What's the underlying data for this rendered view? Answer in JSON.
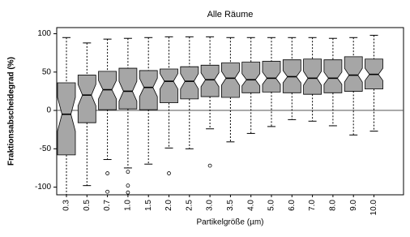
{
  "chart_data": {
    "type": "boxplot",
    "title": "Alle Räume",
    "x_label": "Partikelgröße (µm)",
    "y_label": "Fraktionsabscheidegrad (%)",
    "categories": [
      "0.3",
      "0.5",
      "0.7",
      "1.0",
      "1.5",
      "2.0",
      "2.5",
      "3.0",
      "3.5",
      "4.0",
      "5.0",
      "6.0",
      "7.0",
      "8.0",
      "9.0",
      "10.0"
    ],
    "whisker_low": [
      -110,
      -98,
      -64,
      -75,
      -70,
      -49,
      -50,
      -24,
      -41,
      -30,
      -21,
      -12,
      -14,
      -20,
      -32,
      -27
    ],
    "q1": [
      -58,
      -16,
      1,
      2,
      1,
      10,
      15,
      18,
      17,
      23,
      24,
      23,
      21,
      23,
      25,
      28
    ],
    "median": [
      -5,
      20,
      27,
      25,
      30,
      38,
      38,
      40,
      42,
      40,
      42,
      44,
      42,
      42,
      46,
      47
    ],
    "q3": [
      36,
      46,
      51,
      55,
      52,
      54,
      57,
      59,
      62,
      63,
      64,
      66,
      67,
      66,
      70,
      67
    ],
    "whisker_high": [
      95,
      88,
      93,
      94,
      95,
      96,
      96,
      96,
      95,
      95,
      95,
      95,
      95,
      94,
      95,
      98
    ],
    "notch_low": [
      -27,
      6,
      15,
      12,
      18,
      28,
      28,
      31,
      33,
      32,
      34,
      36,
      33,
      34,
      37,
      39
    ],
    "notch_high": [
      17,
      34,
      39,
      38,
      42,
      48,
      48,
      49,
      51,
      48,
      50,
      52,
      51,
      50,
      55,
      55
    ],
    "outliers": [
      [],
      [],
      [
        -82,
        -106
      ],
      [
        -80,
        -98,
        -107
      ],
      [],
      [
        -82
      ],
      [],
      [
        -72
      ],
      [],
      [],
      [],
      [],
      [],
      [],
      [],
      []
    ],
    "color": "#a6a6a6",
    "hline": 0,
    "ylim": [
      -110,
      108
    ],
    "yticks": [
      -100,
      -50,
      0,
      50,
      100
    ]
  }
}
